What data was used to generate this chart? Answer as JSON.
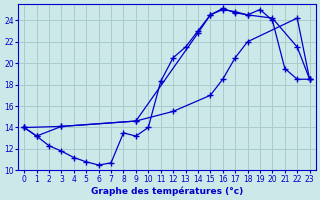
{
  "xlabel": "Graphe des températures (°c)",
  "background_color": "#cce8e8",
  "grid_color": "#aacccc",
  "line_color": "#0000cc",
  "xlim": [
    -0.5,
    23.5
  ],
  "ylim": [
    10,
    25.5
  ],
  "xticks": [
    0,
    1,
    2,
    3,
    4,
    5,
    6,
    7,
    8,
    9,
    10,
    11,
    12,
    13,
    14,
    15,
    16,
    17,
    18,
    19,
    20,
    21,
    22,
    23
  ],
  "yticks": [
    10,
    12,
    14,
    16,
    18,
    20,
    22,
    24
  ],
  "series1_x": [
    0,
    1,
    2,
    3,
    4,
    5,
    6,
    7,
    8,
    9,
    10,
    11,
    12,
    13,
    14,
    15,
    16,
    17,
    18,
    19,
    20,
    21,
    22,
    23
  ],
  "series1_y": [
    14.0,
    13.2,
    12.3,
    11.8,
    11.2,
    10.8,
    10.5,
    10.7,
    13.5,
    13.2,
    14.0,
    18.3,
    20.5,
    21.5,
    23.0,
    24.5,
    25.0,
    24.8,
    24.5,
    25.0,
    24.0,
    19.5,
    18.5,
    18.5
  ],
  "series2_x": [
    0,
    1,
    3,
    9,
    12,
    15,
    16,
    17,
    18,
    22,
    23
  ],
  "series2_y": [
    14.0,
    13.2,
    14.1,
    14.6,
    15.5,
    17.0,
    18.5,
    20.5,
    22.0,
    24.2,
    18.5
  ],
  "series3_x": [
    0,
    3,
    9,
    14,
    15,
    16,
    17,
    18,
    20,
    22,
    23
  ],
  "series3_y": [
    14.0,
    14.1,
    14.6,
    22.8,
    24.5,
    25.1,
    24.7,
    24.5,
    24.2,
    21.5,
    18.5
  ]
}
